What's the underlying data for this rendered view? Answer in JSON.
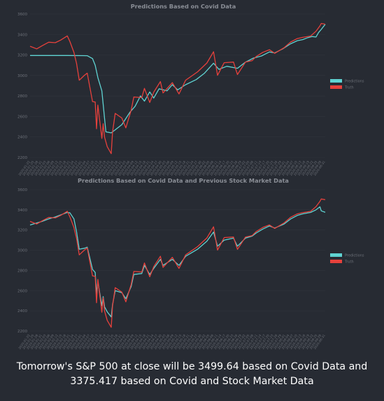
{
  "colors": {
    "background": "#272b33",
    "predictions": "#5fd3d2",
    "truth": "#e6413c",
    "title_text": "#8a8e96",
    "tick_text": "#6e727a",
    "grid": "#30343c"
  },
  "chart_data": [
    {
      "type": "line",
      "title": "Predictions Based on Covid Data",
      "ylim": [
        2200,
        3600
      ],
      "yticks": [
        2200,
        2400,
        2600,
        2800,
        3000,
        3200,
        3400,
        3600
      ],
      "x_range": [
        "2020-01-22",
        "2020-08-31"
      ],
      "legend_position": "right",
      "grid": true,
      "series": [
        {
          "name": "Predictions",
          "color": "#5fd3d2",
          "points": [
            [
              "2020-01-22",
              3195
            ],
            [
              "2020-02-05",
              3195
            ],
            [
              "2020-02-19",
              3195
            ],
            [
              "2020-03-02",
              3194
            ],
            [
              "2020-03-05",
              3193
            ],
            [
              "2020-03-09",
              3165
            ],
            [
              "2020-03-11",
              3100
            ],
            [
              "2020-03-13",
              2980
            ],
            [
              "2020-03-16",
              2850
            ],
            [
              "2020-03-17",
              2720
            ],
            [
              "2020-03-18",
              2580
            ],
            [
              "2020-03-19",
              2450
            ],
            [
              "2020-03-23",
              2440
            ],
            [
              "2020-03-26",
              2470
            ],
            [
              "2020-03-31",
              2520
            ],
            [
              "2020-04-06",
              2640
            ],
            [
              "2020-04-10",
              2700
            ],
            [
              "2020-04-14",
              2800
            ],
            [
              "2020-04-17",
              2750
            ],
            [
              "2020-04-21",
              2840
            ],
            [
              "2020-04-24",
              2780
            ],
            [
              "2020-04-28",
              2870
            ],
            [
              "2020-05-04",
              2850
            ],
            [
              "2020-05-08",
              2910
            ],
            [
              "2020-05-12",
              2860
            ],
            [
              "2020-05-18",
              2910
            ],
            [
              "2020-05-26",
              2960
            ],
            [
              "2020-06-01",
              3020
            ],
            [
              "2020-06-08",
              3120
            ],
            [
              "2020-06-12",
              3060
            ],
            [
              "2020-06-18",
              3090
            ],
            [
              "2020-06-26",
              3070
            ],
            [
              "2020-07-02",
              3130
            ],
            [
              "2020-07-08",
              3170
            ],
            [
              "2020-07-14",
              3190
            ],
            [
              "2020-07-20",
              3230
            ],
            [
              "2020-07-24",
              3220
            ],
            [
              "2020-07-30",
              3260
            ],
            [
              "2020-08-05",
              3310
            ],
            [
              "2020-08-10",
              3340
            ],
            [
              "2020-08-14",
              3350
            ],
            [
              "2020-08-18",
              3370
            ],
            [
              "2020-08-21",
              3380
            ],
            [
              "2020-08-24",
              3375
            ],
            [
              "2020-08-26",
              3420
            ],
            [
              "2020-08-28",
              3450
            ],
            [
              "2020-08-31",
              3499.64
            ]
          ]
        },
        {
          "name": "Truth",
          "color": "#e6413c",
          "points": [
            [
              "2020-01-22",
              3285
            ],
            [
              "2020-01-27",
              3260
            ],
            [
              "2020-01-31",
              3290
            ],
            [
              "2020-02-05",
              3325
            ],
            [
              "2020-02-10",
              3320
            ],
            [
              "2020-02-14",
              3345
            ],
            [
              "2020-02-19",
              3386
            ],
            [
              "2020-02-21",
              3330
            ],
            [
              "2020-02-24",
              3225
            ],
            [
              "2020-02-26",
              3116
            ],
            [
              "2020-02-28",
              2954
            ],
            [
              "2020-03-03",
              3003
            ],
            [
              "2020-03-05",
              3023
            ],
            [
              "2020-03-09",
              2746
            ],
            [
              "2020-03-11",
              2741
            ],
            [
              "2020-03-12",
              2480
            ],
            [
              "2020-03-13",
              2711
            ],
            [
              "2020-03-16",
              2386
            ],
            [
              "2020-03-17",
              2529
            ],
            [
              "2020-03-18",
              2398
            ],
            [
              "2020-03-20",
              2305
            ],
            [
              "2020-03-23",
              2237
            ],
            [
              "2020-03-24",
              2447
            ],
            [
              "2020-03-26",
              2630
            ],
            [
              "2020-03-31",
              2585
            ],
            [
              "2020-04-03",
              2489
            ],
            [
              "2020-04-07",
              2660
            ],
            [
              "2020-04-09",
              2790
            ],
            [
              "2020-04-15",
              2784
            ],
            [
              "2020-04-17",
              2874
            ],
            [
              "2020-04-21",
              2737
            ],
            [
              "2020-04-24",
              2837
            ],
            [
              "2020-04-29",
              2940
            ],
            [
              "2020-05-01",
              2830
            ],
            [
              "2020-05-08",
              2930
            ],
            [
              "2020-05-13",
              2820
            ],
            [
              "2020-05-18",
              2954
            ],
            [
              "2020-05-27",
              3036
            ],
            [
              "2020-06-03",
              3122
            ],
            [
              "2020-06-08",
              3232
            ],
            [
              "2020-06-11",
              3002
            ],
            [
              "2020-06-16",
              3125
            ],
            [
              "2020-06-23",
              3131
            ],
            [
              "2020-06-26",
              3009
            ],
            [
              "2020-07-02",
              3130
            ],
            [
              "2020-07-07",
              3145
            ],
            [
              "2020-07-10",
              3185
            ],
            [
              "2020-07-15",
              3226
            ],
            [
              "2020-07-20",
              3251
            ],
            [
              "2020-07-24",
              3216
            ],
            [
              "2020-07-31",
              3271
            ],
            [
              "2020-08-05",
              3327
            ],
            [
              "2020-08-10",
              3360
            ],
            [
              "2020-08-14",
              3372
            ],
            [
              "2020-08-20",
              3385
            ],
            [
              "2020-08-24",
              3431
            ],
            [
              "2020-08-27",
              3484
            ],
            [
              "2020-08-28",
              3508
            ],
            [
              "2020-08-31",
              3500
            ]
          ]
        }
      ]
    },
    {
      "type": "line",
      "title": "Predictions Based on Covid Data and Previous Stock Market Data",
      "ylim": [
        2200,
        3600
      ],
      "yticks": [
        2200,
        2400,
        2600,
        2800,
        3000,
        3200,
        3400,
        3600
      ],
      "x_range": [
        "2020-01-22",
        "2020-08-31"
      ],
      "legend_position": "right",
      "grid": true,
      "series": [
        {
          "name": "Predictions",
          "color": "#5fd3d2",
          "points": [
            [
              "2020-01-22",
              3250
            ],
            [
              "2020-01-27",
              3270
            ],
            [
              "2020-01-31",
              3285
            ],
            [
              "2020-02-05",
              3310
            ],
            [
              "2020-02-10",
              3330
            ],
            [
              "2020-02-14",
              3350
            ],
            [
              "2020-02-19",
              3375
            ],
            [
              "2020-02-21",
              3370
            ],
            [
              "2020-02-24",
              3310
            ],
            [
              "2020-02-26",
              3180
            ],
            [
              "2020-02-28",
              3010
            ],
            [
              "2020-03-03",
              3020
            ],
            [
              "2020-03-05",
              3030
            ],
            [
              "2020-03-09",
              2810
            ],
            [
              "2020-03-11",
              2780
            ],
            [
              "2020-03-12",
              2570
            ],
            [
              "2020-03-13",
              2690
            ],
            [
              "2020-03-16",
              2450
            ],
            [
              "2020-03-17",
              2540
            ],
            [
              "2020-03-18",
              2440
            ],
            [
              "2020-03-20",
              2390
            ],
            [
              "2020-03-23",
              2340
            ],
            [
              "2020-03-24",
              2460
            ],
            [
              "2020-03-26",
              2600
            ],
            [
              "2020-03-31",
              2580
            ],
            [
              "2020-04-03",
              2520
            ],
            [
              "2020-04-07",
              2640
            ],
            [
              "2020-04-09",
              2760
            ],
            [
              "2020-04-15",
              2770
            ],
            [
              "2020-04-17",
              2850
            ],
            [
              "2020-04-21",
              2760
            ],
            [
              "2020-04-24",
              2820
            ],
            [
              "2020-04-29",
              2910
            ],
            [
              "2020-05-01",
              2850
            ],
            [
              "2020-05-08",
              2910
            ],
            [
              "2020-05-13",
              2850
            ],
            [
              "2020-05-18",
              2940
            ],
            [
              "2020-05-27",
              3010
            ],
            [
              "2020-06-03",
              3090
            ],
            [
              "2020-06-08",
              3180
            ],
            [
              "2020-06-11",
              3040
            ],
            [
              "2020-06-16",
              3100
            ],
            [
              "2020-06-23",
              3120
            ],
            [
              "2020-06-26",
              3040
            ],
            [
              "2020-07-02",
              3120
            ],
            [
              "2020-07-07",
              3140
            ],
            [
              "2020-07-10",
              3170
            ],
            [
              "2020-07-15",
              3210
            ],
            [
              "2020-07-20",
              3240
            ],
            [
              "2020-07-24",
              3220
            ],
            [
              "2020-07-31",
              3260
            ],
            [
              "2020-08-05",
              3310
            ],
            [
              "2020-08-10",
              3345
            ],
            [
              "2020-08-14",
              3360
            ],
            [
              "2020-08-20",
              3375
            ],
            [
              "2020-08-24",
              3400
            ],
            [
              "2020-08-27",
              3430
            ],
            [
              "2020-08-28",
              3390
            ],
            [
              "2020-08-31",
              3375.417
            ]
          ]
        },
        {
          "name": "Truth",
          "color": "#e6413c",
          "points": [
            [
              "2020-01-22",
              3285
            ],
            [
              "2020-01-27",
              3260
            ],
            [
              "2020-01-31",
              3290
            ],
            [
              "2020-02-05",
              3325
            ],
            [
              "2020-02-10",
              3320
            ],
            [
              "2020-02-14",
              3345
            ],
            [
              "2020-02-19",
              3386
            ],
            [
              "2020-02-21",
              3330
            ],
            [
              "2020-02-24",
              3225
            ],
            [
              "2020-02-26",
              3116
            ],
            [
              "2020-02-28",
              2954
            ],
            [
              "2020-03-03",
              3003
            ],
            [
              "2020-03-05",
              3023
            ],
            [
              "2020-03-09",
              2746
            ],
            [
              "2020-03-11",
              2741
            ],
            [
              "2020-03-12",
              2480
            ],
            [
              "2020-03-13",
              2711
            ],
            [
              "2020-03-16",
              2386
            ],
            [
              "2020-03-17",
              2529
            ],
            [
              "2020-03-18",
              2398
            ],
            [
              "2020-03-20",
              2305
            ],
            [
              "2020-03-23",
              2237
            ],
            [
              "2020-03-24",
              2447
            ],
            [
              "2020-03-26",
              2630
            ],
            [
              "2020-03-31",
              2585
            ],
            [
              "2020-04-03",
              2489
            ],
            [
              "2020-04-07",
              2660
            ],
            [
              "2020-04-09",
              2790
            ],
            [
              "2020-04-15",
              2784
            ],
            [
              "2020-04-17",
              2874
            ],
            [
              "2020-04-21",
              2737
            ],
            [
              "2020-04-24",
              2837
            ],
            [
              "2020-04-29",
              2940
            ],
            [
              "2020-05-01",
              2830
            ],
            [
              "2020-05-08",
              2930
            ],
            [
              "2020-05-13",
              2820
            ],
            [
              "2020-05-18",
              2954
            ],
            [
              "2020-05-27",
              3036
            ],
            [
              "2020-06-03",
              3122
            ],
            [
              "2020-06-08",
              3232
            ],
            [
              "2020-06-11",
              3002
            ],
            [
              "2020-06-16",
              3125
            ],
            [
              "2020-06-23",
              3131
            ],
            [
              "2020-06-26",
              3009
            ],
            [
              "2020-07-02",
              3130
            ],
            [
              "2020-07-07",
              3145
            ],
            [
              "2020-07-10",
              3185
            ],
            [
              "2020-07-15",
              3226
            ],
            [
              "2020-07-20",
              3251
            ],
            [
              "2020-07-24",
              3216
            ],
            [
              "2020-07-31",
              3271
            ],
            [
              "2020-08-05",
              3327
            ],
            [
              "2020-08-10",
              3360
            ],
            [
              "2020-08-14",
              3372
            ],
            [
              "2020-08-20",
              3385
            ],
            [
              "2020-08-24",
              3431
            ],
            [
              "2020-08-27",
              3484
            ],
            [
              "2020-08-28",
              3508
            ],
            [
              "2020-08-31",
              3500
            ]
          ]
        }
      ]
    }
  ],
  "footer": {
    "line1": "Tomorrow's S&P 500 at close will be 3499.64 based on Covid Data and",
    "line2": "3375.417 based on Covid and Stock Market Data"
  }
}
